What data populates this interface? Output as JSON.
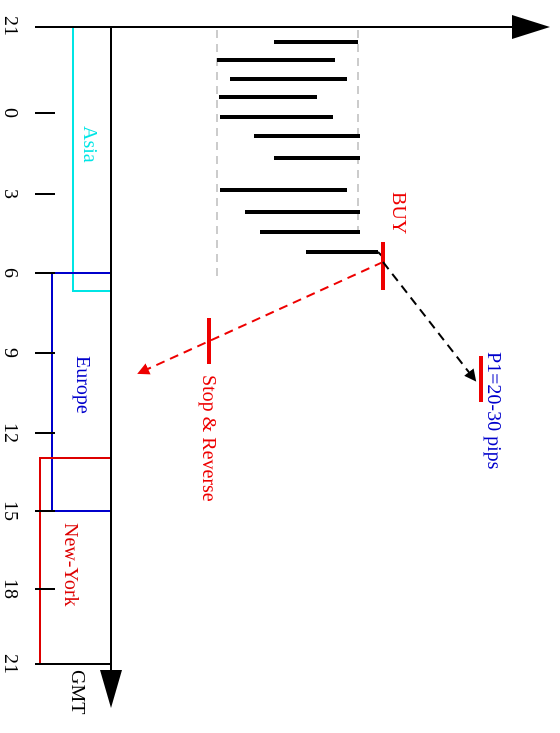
{
  "axis": {
    "ticks": [
      "21",
      "0",
      "3",
      "6",
      "9",
      "12",
      "15",
      "18",
      "21"
    ],
    "unit_label": "GMT"
  },
  "sessions": [
    {
      "label": "Asia",
      "color": "#00e5e5"
    },
    {
      "label": "Europe",
      "color": "#0000cc"
    },
    {
      "label": "New-York",
      "color": "#dd0000"
    }
  ],
  "annotations": {
    "buy": "BUY",
    "stop": "Stop & Reverse",
    "target": "P1=20-30 pips"
  },
  "colors": {
    "axis": "#000000",
    "buy": "#ee0000",
    "stop": "#ee0000",
    "target_text": "#0000cc",
    "target_mark": "#ee0000",
    "bars": "#000000",
    "range_lines": "#bbbbbb"
  }
}
